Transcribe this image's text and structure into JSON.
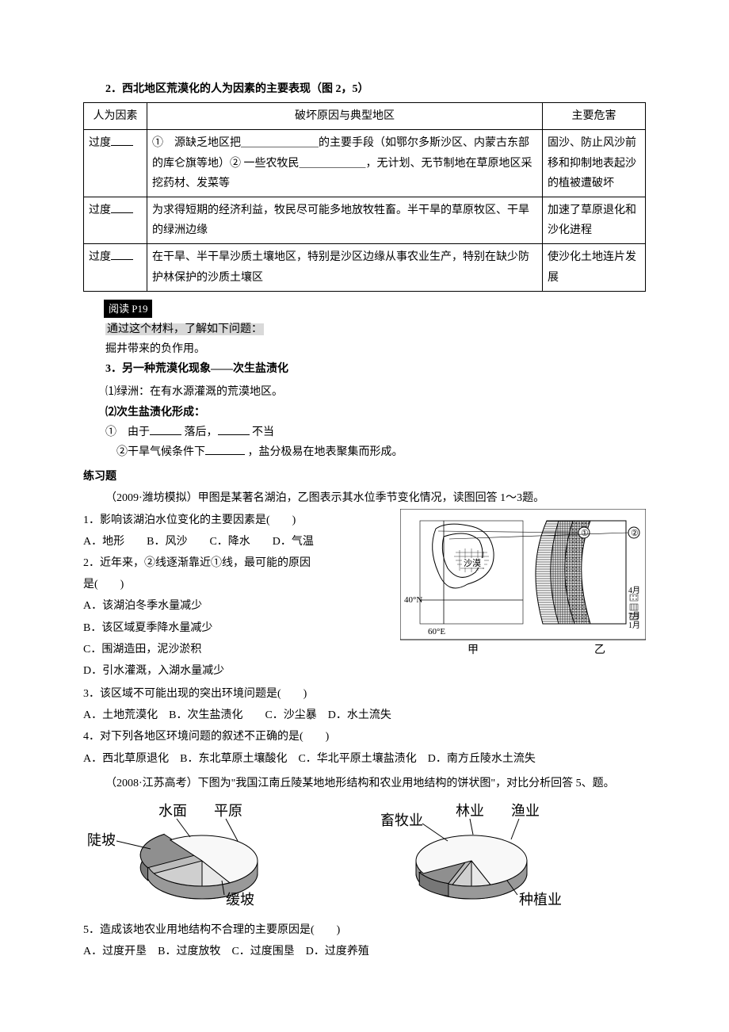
{
  "title2": "2．西北地区荒漠化的人为因素的主要表现（图 2，5）",
  "table": {
    "headers": [
      "人为因素",
      "破坏原因与典型地区",
      "主要危害"
    ],
    "rows": [
      {
        "factor_prefix": "过度",
        "cause": "①　源缺乏地区把＿＿＿＿＿＿＿的主要手段（如鄂尔多斯沙区、内蒙古东部的库仑旗等地）② 一些农牧民＿＿＿＿＿＿，无计划、无节制地在草原地区采挖药材、发菜等",
        "harm": "固沙、防止风沙前移和抑制地表起沙的植被遭破坏"
      },
      {
        "factor_prefix": "过度",
        "cause": "为求得短期的经济利益，牧民尽可能多地放牧牲畜。半干旱的草原牧区、干旱的绿洲边缘",
        "harm": "加速了草原退化和沙化进程"
      },
      {
        "factor_prefix": "过度",
        "cause": "在干旱、半干旱沙质土壤地区，特别是沙区边缘从事农业生产，特别在缺少防护林保护的沙质土壤区",
        "harm": "使沙化土地连片发展"
      }
    ]
  },
  "read_badge": "阅读 P19",
  "gray_text": "通过这个材料，了解如下问题：",
  "well_text": "掘井带来的负作用。",
  "title3": "3．另一种荒漠化现象——次生盐渍化",
  "item3_1": "⑴绿洲：在有水源灌溉的荒漠地区。",
  "item3_2_title": "⑵次生盐渍化形成：",
  "item3_2_a_pre": "①　由于",
  "item3_2_a_mid": "落后，",
  "item3_2_a_post": "不当",
  "item3_2_b_pre": "②干旱气候条件下",
  "item3_2_b_post": "，盐分极易在地表聚集而形成。",
  "exercise_label": "练习题",
  "context1": "（2009·潍坊模拟）甲图是某著名湖泊，乙图表示其水位季节变化情况，读图回答 1～3题。",
  "q1": "1．影响该湖泊水位变化的主要因素是(　　)",
  "q1_opts": "A．地形　　B．风沙　　C．降水　　D．气温",
  "q2_line1": "2．近年来，②线逐渐靠近①线，最可能的原因",
  "q2_line2": "是(　　)",
  "q2_a": "A．该湖泊冬季水量减少",
  "q2_b": "B．该区域夏季降水量减少",
  "q2_c": "C．围湖造田，泥沙淤积",
  "q2_d": "D．引水灌溉，入湖水量减少",
  "q3": "3．该区域不可能出现的突出环境问题是(　　)",
  "q3_opts": "A．土地荒漠化　B．次生盐渍化　　C．沙尘暴　D．水土流失",
  "q4": "4．对下列各地区环境问题的叙述不正确的是(　　)",
  "q4_opts": "A．西北草原退化　B．东北草原土壤酸化　C．华北平原土壤盐渍化　D．南方丘陵水土流失",
  "context2": "（2008·江苏高考）下图为\"我国江南丘陵某地地形结构和农业用地结构的饼状图\"，对比分析回答 5、题。",
  "q5": "5．造成该地农业用地结构不合理的主要原因是(　　)",
  "q5_opts": "A．过度开垦　B．过度放牧　C．过度围垦　D．过度养殖",
  "map": {
    "lat_label": "40°N",
    "lon_label": "60°E",
    "desert_label": "沙漠",
    "caption_left": "甲",
    "caption_right": "乙",
    "circ1": "①",
    "circ2": "②",
    "month4": "4月",
    "month7": "7月",
    "month1": "1月"
  },
  "pie_left": {
    "labels": [
      "陡坡",
      "水面",
      "平原",
      "缓坡"
    ],
    "slices": [
      {
        "start": 150,
        "end": 235,
        "fill": "#8f8f8f"
      },
      {
        "start": 90,
        "end": 150,
        "fill": "#cfcfcf"
      },
      {
        "start": 60,
        "end": 90,
        "fill": "#e8e8e8"
      },
      {
        "start": 235,
        "end": 420,
        "fill": "#f8f8f8"
      }
    ]
  },
  "pie_right": {
    "labels": [
      "畜牧业",
      "林业",
      "渔业",
      "种植业"
    ],
    "slices": [
      {
        "start": 110,
        "end": 150,
        "fill": "#8f8f8f"
      },
      {
        "start": 90,
        "end": 110,
        "fill": "#cfcfcf"
      },
      {
        "start": 70,
        "end": 90,
        "fill": "#e8e8e8"
      },
      {
        "start": 150,
        "end": 430,
        "fill": "#f8f8f8"
      }
    ]
  }
}
